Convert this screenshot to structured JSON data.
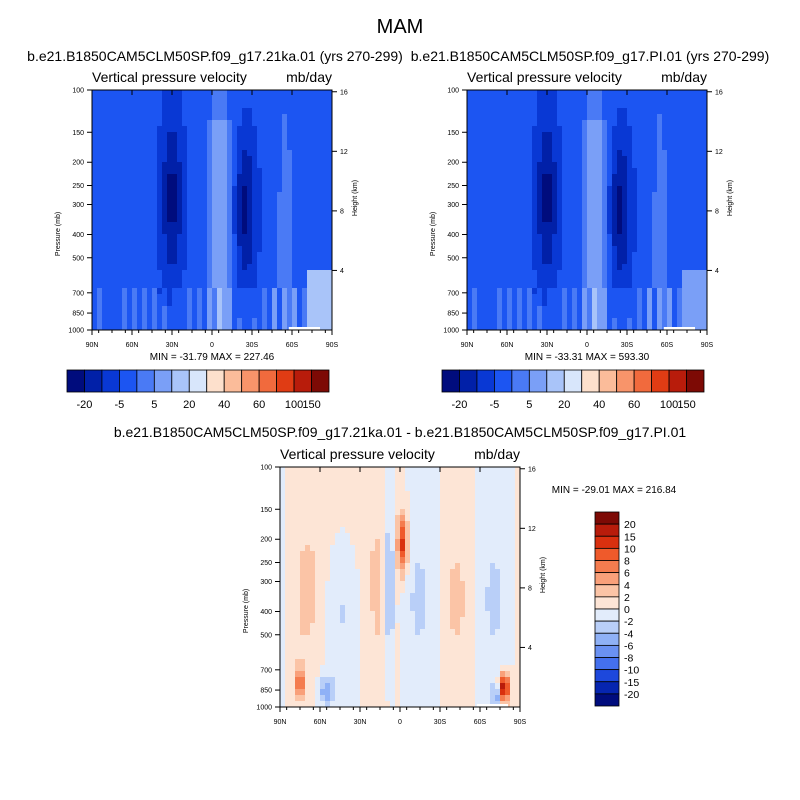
{
  "figure": {
    "title": "MAM"
  },
  "chart_data": [
    {
      "type": "heatmap",
      "title": "b.e21.B1850CAM5CLM50SP.f09_g17.21ka.01 (yrs 270-299)",
      "left_label": "Vertical pressure velocity",
      "right_label": "mb/day",
      "ylabel": "Pressure (mb)",
      "ylabel_right": "Height (km)",
      "x_ticks": [
        "90N",
        "60N",
        "30N",
        "0",
        "30S",
        "60S",
        "90S"
      ],
      "y_ticks": [
        "100",
        "150",
        "200",
        "250",
        "300",
        "400",
        "500",
        "700",
        "850",
        "1000"
      ],
      "y_ticks_right": [
        "16",
        "12",
        "8",
        "4"
      ],
      "stats": "MIN = -31.79   MAX = 227.46",
      "min": -31.79,
      "max": 227.46,
      "colorbar_labels": [
        "-20",
        "-5",
        "5",
        "20",
        "40",
        "60",
        "100",
        "150"
      ],
      "colorbar_colors": [
        "#000c7d",
        "#0120a8",
        "#0938d4",
        "#1c55f2",
        "#4a7af5",
        "#7a9ff7",
        "#a9c4f9",
        "#d8e6fb",
        "#fde0cc",
        "#fbbc9a",
        "#f8946a",
        "#f16a3d",
        "#e03c14",
        "#b81c0b",
        "#7d0a05"
      ]
    },
    {
      "type": "heatmap",
      "title": "b.e21.B1850CAM5CLM50SP.f09_g17.PI.01 (yrs 270-299)",
      "left_label": "Vertical pressure velocity",
      "right_label": "mb/day",
      "ylabel": "Pressure (mb)",
      "ylabel_right": "Height (km)",
      "x_ticks": [
        "90N",
        "60N",
        "30N",
        "0",
        "30S",
        "60S",
        "90S"
      ],
      "y_ticks": [
        "100",
        "150",
        "200",
        "250",
        "300",
        "400",
        "500",
        "700",
        "850",
        "1000"
      ],
      "y_ticks_right": [
        "16",
        "12",
        "8",
        "4"
      ],
      "stats": "MIN = -33.31   MAX = 593.30",
      "min": -33.31,
      "max": 593.3,
      "colorbar_labels": [
        "-20",
        "-5",
        "5",
        "20",
        "40",
        "60",
        "100",
        "150"
      ],
      "colorbar_colors": [
        "#000c7d",
        "#0120a8",
        "#0938d4",
        "#1c55f2",
        "#4a7af5",
        "#7a9ff7",
        "#a9c4f9",
        "#d8e6fb",
        "#fde0cc",
        "#fbbc9a",
        "#f8946a",
        "#f16a3d",
        "#e03c14",
        "#b81c0b",
        "#7d0a05"
      ]
    },
    {
      "type": "heatmap",
      "title": "b.e21.B1850CAM5CLM50SP.f09_g17.21ka.01 - b.e21.B1850CAM5CLM50SP.f09_g17.PI.01",
      "left_label": "Vertical pressure velocity",
      "right_label": "mb/day",
      "ylabel": "Pressure (mb)",
      "ylabel_right": "Height (km)",
      "x_ticks": [
        "90N",
        "60N",
        "30N",
        "0",
        "30S",
        "60S",
        "90S"
      ],
      "y_ticks": [
        "100",
        "150",
        "200",
        "250",
        "300",
        "400",
        "500",
        "700",
        "850",
        "1000"
      ],
      "y_ticks_right": [
        "16",
        "12",
        "8",
        "4"
      ],
      "stats": "MIN = -29.01   MAX = 216.84",
      "min": -29.01,
      "max": 216.84,
      "colorbar_labels": [
        "20",
        "15",
        "10",
        "8",
        "6",
        "4",
        "2",
        "0",
        "-2",
        "-4",
        "-6",
        "-8",
        "-10",
        "-15",
        "-20"
      ],
      "colorbar_colors": [
        "#7d0a05",
        "#b81c0b",
        "#d9300f",
        "#ef5a2b",
        "#f47c4f",
        "#f9a07a",
        "#fbc4a6",
        "#fde5d6",
        "#e2ecfb",
        "#b9cff8",
        "#8fb1f6",
        "#6a91f2",
        "#4470ee",
        "#1d48dc",
        "#0625b0",
        "#000c7d"
      ]
    }
  ]
}
